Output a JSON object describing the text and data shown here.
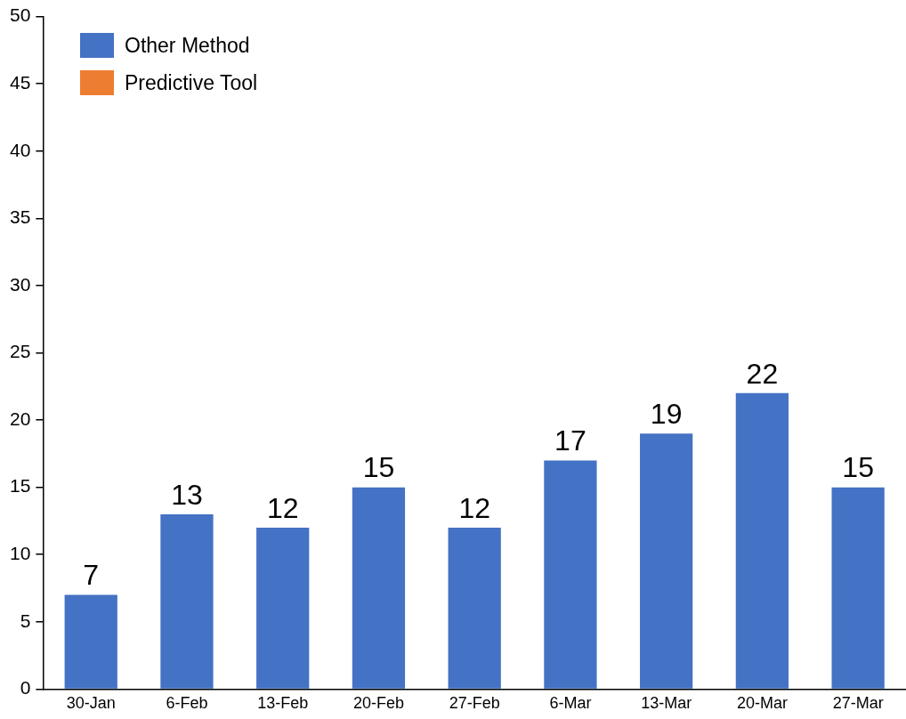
{
  "chart_data": {
    "type": "bar",
    "categories": [
      "30-Jan",
      "6-Feb",
      "13-Feb",
      "20-Feb",
      "27-Feb",
      "6-Mar",
      "13-Mar",
      "20-Mar",
      "27-Mar"
    ],
    "series": [
      {
        "name": "Other Method",
        "color": "#4472c4",
        "values": [
          7,
          13,
          12,
          15,
          12,
          17,
          19,
          22,
          15
        ]
      },
      {
        "name": "Predictive Tool",
        "color": "#ed7d31",
        "values": [
          null,
          null,
          null,
          null,
          null,
          null,
          null,
          null,
          null
        ]
      }
    ],
    "ylim": [
      0,
      50
    ],
    "yticks": [
      0,
      5,
      10,
      15,
      20,
      25,
      30,
      35,
      40,
      45,
      50
    ],
    "grid": false,
    "legend": "top left",
    "data_labels": true
  }
}
